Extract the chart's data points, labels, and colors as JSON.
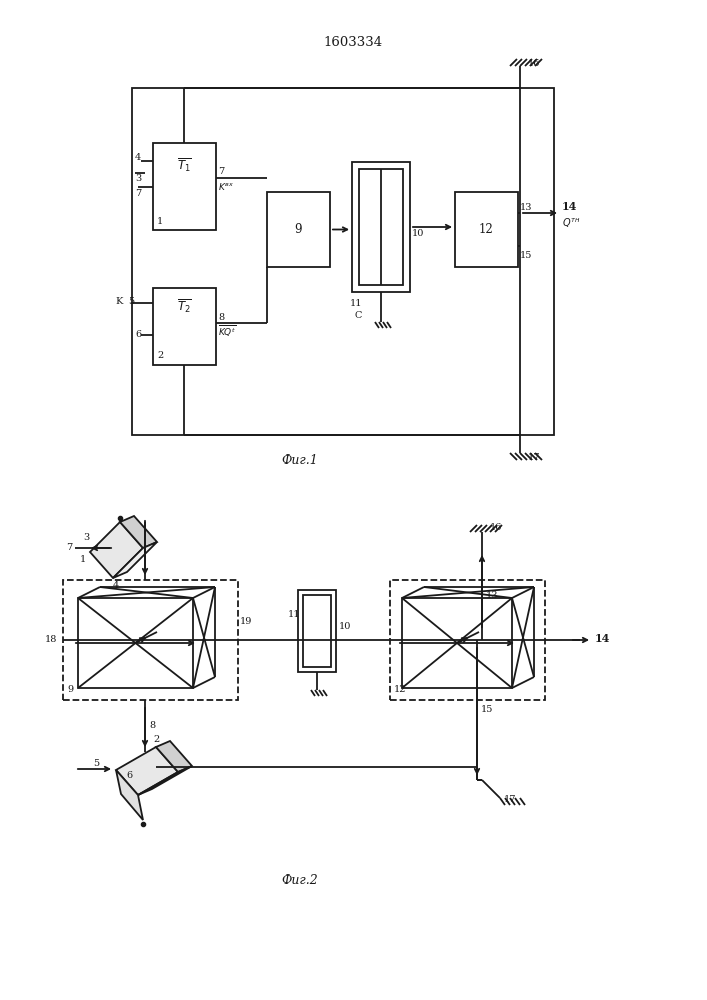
{
  "title": "1603334",
  "fig1_label": "Фиг.1",
  "fig2_label": "Фиг.2",
  "bg_color": "#ffffff",
  "line_color": "#1a1a1a",
  "lw": 1.3
}
